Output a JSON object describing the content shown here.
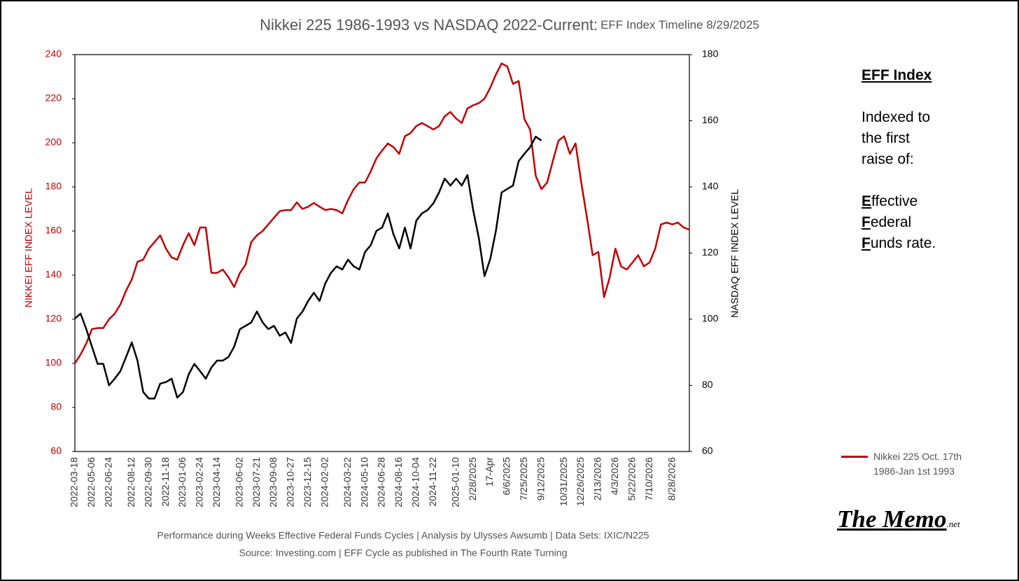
{
  "chart_data": {
    "type": "line",
    "title": "Nikkei 225 1986-1993 vs NASDAQ 2022-Current:",
    "subtitle": "EFF Index Timeline 8/29/2025",
    "ylabel": "NIKKEI EFF INDEX LEVEL",
    "y2label": "NASDAQ EFF INDEX LEVEL",
    "footnotes": [
      "Performance during Weeks Effective Federal Funds Cycles | Analysis  by Ulysses Awsumb | Data Sets: IXIC/N225",
      "Source: Investing.com | EFF Cycle as published in The Fourth Rate Turning"
    ],
    "side_note": {
      "heading": "EFF Index",
      "lines": [
        "Indexed to",
        "the first",
        "raise of:"
      ],
      "terms": [
        "Effective",
        "Federal",
        "Funds rate."
      ]
    },
    "logo": {
      "name": "The Memo",
      "suffix": ".net"
    },
    "ylim": [
      60,
      240
    ],
    "yticks": [
      60,
      80,
      100,
      120,
      140,
      160,
      180,
      200,
      220,
      240
    ],
    "y2lim": [
      60,
      180
    ],
    "y2ticks": [
      60,
      80,
      100,
      120,
      140,
      160,
      180
    ],
    "categories": [
      "2022-03-18",
      null,
      null,
      "2022-05-06",
      null,
      null,
      "2022-06-24",
      null,
      null,
      null,
      "2022-08-12",
      null,
      null,
      "2022-09-30",
      null,
      null,
      "2022-11-18",
      null,
      null,
      "2023-01-06",
      null,
      null,
      "2023-02-24",
      null,
      null,
      "2023-04-14",
      null,
      null,
      null,
      "2023-06-02",
      null,
      null,
      "2023-07-21",
      null,
      null,
      "2023-09-08",
      null,
      null,
      "2023-10-27",
      null,
      null,
      "2023-12-15",
      null,
      null,
      "2024-02-02",
      null,
      null,
      null,
      "2024-03-22",
      null,
      null,
      "2024-05-10",
      null,
      null,
      "2024-06-28",
      null,
      null,
      "2024-08-16",
      null,
      null,
      "2024-10-04",
      null,
      null,
      "2024-11-22",
      null,
      null,
      null,
      "2025-01-10",
      null,
      null,
      "2/28/2025",
      null,
      null,
      "17-Apr",
      null,
      null,
      "6/6/2025",
      null,
      null,
      "7/25/2025",
      null,
      null,
      "9/12/2025",
      null,
      null,
      null,
      "10/31/2025",
      null,
      null,
      "12/26/2025",
      null,
      null,
      "2/13/2026",
      null,
      null,
      "4/3/2026",
      null,
      null,
      "5/22/2026",
      null,
      null,
      "7/10/2026",
      null,
      null,
      null,
      "8/28/2026",
      null,
      null,
      null
    ],
    "series": [
      {
        "name": "Nikkei 225 Oct. 17th 1986-Jan 1st 1993",
        "color": "#c00000",
        "axis": "y",
        "values": [
          100,
          104,
          109,
          115.5,
          116,
          116,
          120,
          122.5,
          126.7,
          133,
          138,
          146,
          147,
          152,
          155,
          158,
          152,
          148,
          147,
          153.6,
          159,
          153.6,
          161.6,
          161.6,
          141,
          141,
          142.5,
          139,
          134.6,
          141,
          144.8,
          155,
          158,
          160,
          163,
          166,
          169,
          169.5,
          169.5,
          173,
          170,
          171,
          172.7,
          171,
          169.5,
          170,
          169.5,
          168,
          174,
          179,
          182,
          182,
          187,
          193,
          196.5,
          199.7,
          198,
          195,
          203,
          204.4,
          207.6,
          209,
          207.6,
          206,
          207.6,
          212,
          214,
          211,
          209,
          215.6,
          217,
          218,
          220,
          225,
          231,
          236,
          234.6,
          226.7,
          228,
          210.8,
          206,
          185,
          179,
          182,
          191.7,
          201,
          203,
          195,
          199.7,
          182,
          166,
          149,
          150.5,
          130,
          139,
          152,
          144,
          142.5,
          145.7,
          149,
          144,
          145.7,
          152,
          163,
          163.8,
          163,
          163.8,
          161.6,
          160.6
        ]
      },
      {
        "color": "#000000",
        "axis": "y2",
        "values": [
          100.2,
          101.7,
          97,
          91.7,
          86.5,
          86.5,
          80,
          82,
          84.3,
          88.6,
          93,
          87.5,
          78,
          76,
          76,
          80.5,
          81,
          82,
          76.3,
          78,
          83.3,
          86.5,
          84.3,
          82,
          85.4,
          87.5,
          87.5,
          88.6,
          91.7,
          97,
          98,
          99,
          102.3,
          99,
          97,
          98,
          95,
          96,
          92.8,
          100.2,
          102.3,
          105.5,
          108,
          105.5,
          110.8,
          114,
          116,
          115,
          118,
          116,
          115,
          120.3,
          122.4,
          126.7,
          127.7,
          132,
          125.6,
          121.4,
          127.7,
          121.4,
          129.8,
          132,
          133,
          135,
          138.3,
          142.5,
          140.4,
          142.5,
          140.4,
          143.6,
          133,
          124.5,
          113,
          118.2,
          126.7,
          138.3,
          139.4,
          140.4,
          147.8,
          150,
          152,
          155.2,
          154,
          null,
          null,
          null,
          null,
          null,
          null,
          null,
          null,
          null,
          null,
          null,
          null,
          null,
          null,
          null,
          null,
          null,
          null,
          null,
          null,
          null,
          null,
          null,
          null,
          null,
          null
        ]
      }
    ]
  }
}
